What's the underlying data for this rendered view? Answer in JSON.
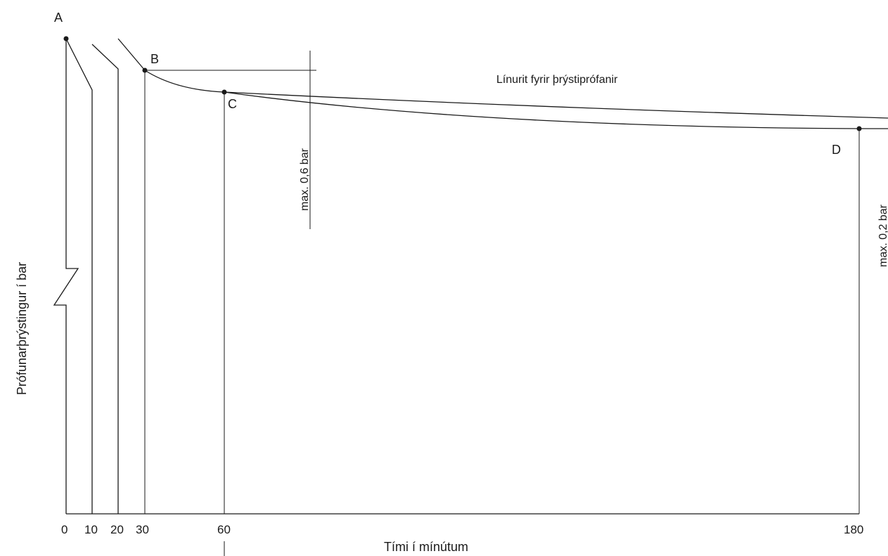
{
  "chart_data": {
    "type": "line",
    "title": "Línurit fyrir þrýstiprófanir",
    "xlabel": "Tími í mínútum",
    "ylabel": "Prófunarþrýstingur í bar",
    "x_ticks": [
      "0",
      "10",
      "20",
      "30",
      "60",
      "180"
    ],
    "xlim": [
      0,
      180
    ],
    "points": [
      {
        "name": "A",
        "x": 0
      },
      {
        "name": "B",
        "x": 30
      },
      {
        "name": "C",
        "x": 60
      },
      {
        "name": "D",
        "x": 180
      }
    ],
    "annotations": [
      "max. 0,6 bar",
      "max. 0,2 bar"
    ],
    "grid": false
  }
}
